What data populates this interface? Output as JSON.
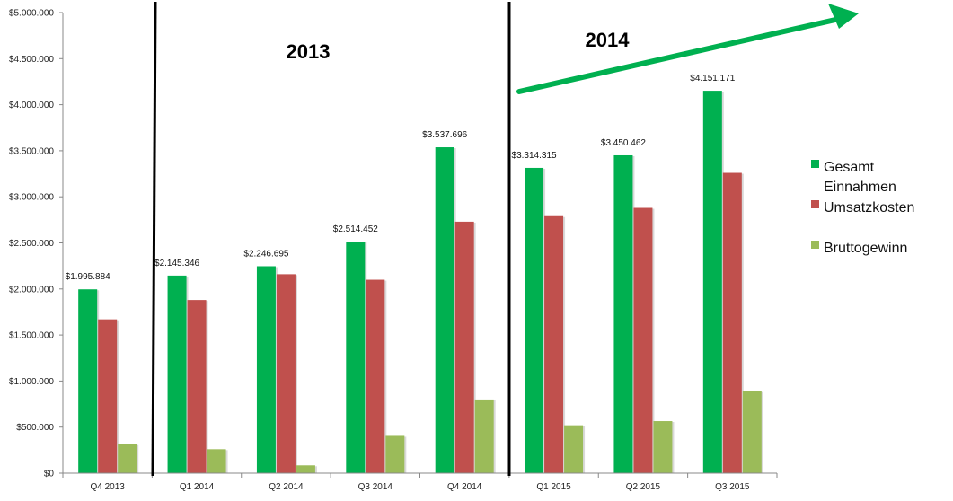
{
  "chart_data": {
    "type": "bar",
    "categories": [
      "Q4 2013",
      "Q1 2014",
      "Q2 2014",
      "Q3 2014",
      "Q4 2014",
      "Q1 2015",
      "Q2 2015",
      "Q3 2015"
    ],
    "series": [
      {
        "name": "Gesamt Einnahmen",
        "name_lines": [
          "Gesamt",
          "Einnahmen"
        ],
        "color": "#00b050",
        "values": [
          1995884,
          2145346,
          2246695,
          2514452,
          3537696,
          3314315,
          3450462,
          4151171
        ]
      },
      {
        "name": "Umsatzkosten",
        "name_lines": [
          "Umsatzkosten"
        ],
        "color": "#c0504d",
        "values": [
          1670000,
          1880000,
          2160000,
          2100000,
          2730000,
          2790000,
          2880000,
          3260000
        ]
      },
      {
        "name": "Bruttogewinn",
        "name_lines": [
          "Bruttogewinn"
        ],
        "color": "#9bbb59",
        "values": [
          315000,
          260000,
          85000,
          405000,
          800000,
          520000,
          565000,
          890000
        ]
      }
    ],
    "data_labels": [
      "$1.995.884",
      "$2.145.346",
      "$2.246.695",
      "$2.514.452",
      "$3.537.696",
      "$3.314.315",
      "$3.450.462",
      "$4.151.171"
    ],
    "y_ticks": [
      0,
      500000,
      1000000,
      1500000,
      2000000,
      2500000,
      3000000,
      3500000,
      4000000,
      4500000,
      5000000
    ],
    "y_tick_labels": [
      "$0",
      "$500.000",
      "$1.000.000",
      "$1.500.000",
      "$2.000.000",
      "$2.500.000",
      "$3.000.000",
      "$3.500.000",
      "$4.000.000",
      "$4.500.000",
      "$5.000.000"
    ],
    "ylim": [
      0,
      5000000
    ],
    "annotations": {
      "year_left": "2013",
      "year_right": "2014"
    },
    "legend_position": "right",
    "grid": false
  }
}
